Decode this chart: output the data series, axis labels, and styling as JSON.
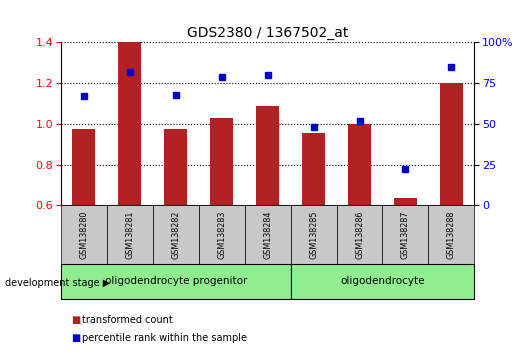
{
  "title": "GDS2380 / 1367502_at",
  "samples": [
    "GSM138280",
    "GSM138281",
    "GSM138282",
    "GSM138283",
    "GSM138284",
    "GSM138285",
    "GSM138286",
    "GSM138287",
    "GSM138288"
  ],
  "transformed_count": [
    0.975,
    1.4,
    0.975,
    1.03,
    1.09,
    0.955,
    1.0,
    0.635,
    1.2
  ],
  "percentile_rank": [
    67,
    82,
    68,
    79,
    80,
    48,
    52,
    22,
    85
  ],
  "ylim_left": [
    0.6,
    1.4
  ],
  "ylim_right": [
    0,
    100
  ],
  "yticks_left": [
    0.6,
    0.8,
    1.0,
    1.2,
    1.4
  ],
  "yticks_right": [
    0,
    25,
    50,
    75,
    100
  ],
  "ytick_labels_right": [
    "0",
    "25",
    "50",
    "75",
    "100%"
  ],
  "bar_color": "#B22222",
  "dot_color": "#0000CD",
  "label_box_color": "#C8C8C8",
  "green_color": "#90EE90",
  "legend_bar_label": "transformed count",
  "legend_dot_label": "percentile rank within the sample",
  "dev_stage_label": "development stage",
  "group1_label": "oligodendrocyte progenitor",
  "group1_count": 5,
  "group2_label": "oligodendrocyte",
  "group2_count": 4
}
